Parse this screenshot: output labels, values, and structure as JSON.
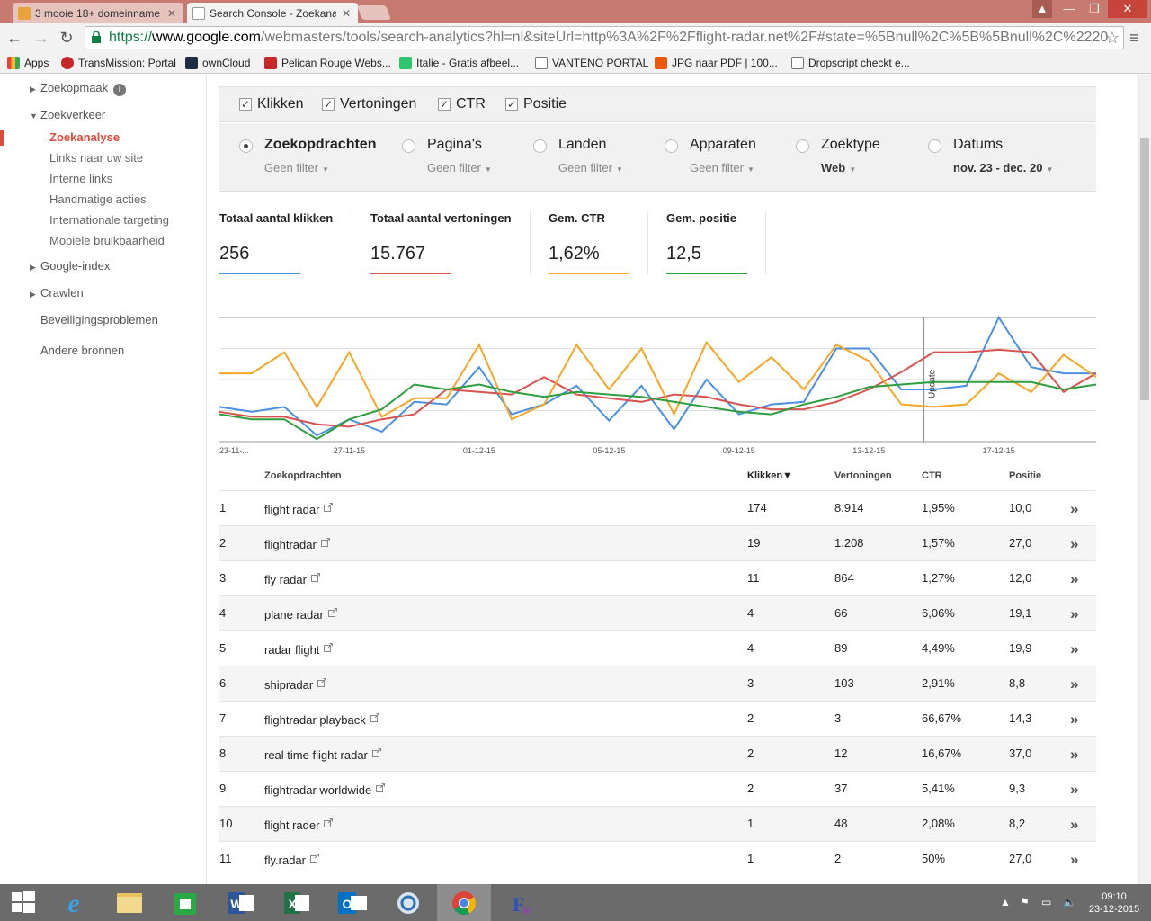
{
  "browser": {
    "tabs": [
      {
        "title": "3 mooie 18+ domeinname",
        "active": false
      },
      {
        "title": "Search Console - Zoekana",
        "active": true
      }
    ],
    "url": {
      "scheme": "https://",
      "host": "www.google.com",
      "path": "/webmasters/tools/search-analytics?hl=nl&siteUrl=http%3A%2F%2Fflight-radar.net%2F#state=%5Bnull%2C%5B%5Bnull%2C%2220"
    },
    "bookmarks": [
      "Apps",
      "TransMission: Portal",
      "ownCloud",
      "Pelican Rouge Webs...",
      "Italie - Gratis afbeel...",
      "VANTENO PORTAL",
      "JPG naar PDF | 100...",
      "Dropscript checkt e..."
    ]
  },
  "sidebar": {
    "items": [
      {
        "label": "Zoekopmaak"
      },
      {
        "label": "Zoekverkeer"
      },
      {
        "label": "Zoekanalyse"
      },
      {
        "label": "Links naar uw site"
      },
      {
        "label": "Interne links"
      },
      {
        "label": "Handmatige acties"
      },
      {
        "label": "Internationale targeting"
      },
      {
        "label": "Mobiele bruikbaarheid"
      },
      {
        "label": "Google-index"
      },
      {
        "label": "Crawlen"
      },
      {
        "label": "Beveiligingsproblemen"
      },
      {
        "label": "Andere bronnen"
      }
    ]
  },
  "filters": {
    "metrics_toggles": [
      "Klikken",
      "Vertoningen",
      "CTR",
      "Positie"
    ],
    "dimensions": [
      {
        "label": "Zoekopdrachten",
        "sub": "Geen filter",
        "selected": true
      },
      {
        "label": "Pagina's",
        "sub": "Geen filter",
        "selected": false
      },
      {
        "label": "Landen",
        "sub": "Geen filter",
        "selected": false
      },
      {
        "label": "Apparaten",
        "sub": "Geen filter",
        "selected": false
      },
      {
        "label": "Zoektype",
        "sub": "Web",
        "selected": false
      },
      {
        "label": "Datums",
        "sub": "nov. 23 - dec. 20",
        "selected": false
      }
    ]
  },
  "metrics": [
    {
      "label": "Totaal aantal klikken",
      "value": "256",
      "color": "#4a90e2"
    },
    {
      "label": "Totaal aantal vertoningen",
      "value": "15.767",
      "color": "#d9534f"
    },
    {
      "label": "Gem. CTR",
      "value": "1,62%",
      "color": "#f5a623"
    },
    {
      "label": "Gem. positie",
      "value": "12,5",
      "color": "#2e9e3e"
    }
  ],
  "chart_data": {
    "type": "line",
    "x_tick_labels": [
      "23-11-...",
      "27-11-15",
      "01-12-15",
      "05-12-15",
      "09-12-15",
      "13-12-15",
      "17-12-15"
    ],
    "annotation": "Update",
    "series": [
      {
        "color": "#4a90e2",
        "values": [
          0.28,
          0.24,
          0.28,
          0.05,
          0.18,
          0.08,
          0.32,
          0.3,
          0.6,
          0.22,
          0.3,
          0.45,
          0.17,
          0.45,
          0.1,
          0.5,
          0.22,
          0.3,
          0.32,
          0.75,
          0.75,
          0.42,
          0.42,
          0.45,
          1.0,
          0.6,
          0.55,
          0.55
        ]
      },
      {
        "color": "#d9534f",
        "values": [
          0.24,
          0.2,
          0.2,
          0.14,
          0.12,
          0.18,
          0.22,
          0.42,
          0.4,
          0.38,
          0.52,
          0.38,
          0.35,
          0.32,
          0.38,
          0.36,
          0.3,
          0.26,
          0.26,
          0.32,
          0.42,
          0.56,
          0.72,
          0.72,
          0.74,
          0.72,
          0.4,
          0.55
        ]
      },
      {
        "color": "#f5a623",
        "values": [
          0.55,
          0.55,
          0.72,
          0.28,
          0.72,
          0.2,
          0.35,
          0.35,
          0.78,
          0.18,
          0.3,
          0.78,
          0.42,
          0.75,
          0.22,
          0.8,
          0.48,
          0.68,
          0.42,
          0.78,
          0.65,
          0.3,
          0.28,
          0.3,
          0.55,
          0.4,
          0.7,
          0.52
        ]
      },
      {
        "color": "#2e9e3e",
        "values": [
          0.22,
          0.18,
          0.18,
          0.02,
          0.18,
          0.26,
          0.46,
          0.42,
          0.46,
          0.4,
          0.36,
          0.4,
          0.38,
          0.36,
          0.32,
          0.28,
          0.24,
          0.22,
          0.3,
          0.36,
          0.44,
          0.46,
          0.48,
          0.48,
          0.48,
          0.48,
          0.42,
          0.46
        ]
      }
    ]
  },
  "table": {
    "headers": {
      "query": "Zoekopdrachten",
      "clicks": "Klikken",
      "sort": "▼",
      "impressions": "Vertoningen",
      "ctr": "CTR",
      "position": "Positie"
    },
    "rows": [
      {
        "n": "1",
        "query": "flight radar",
        "clicks": "174",
        "impressions": "8.914",
        "ctr": "1,95%",
        "position": "10,0"
      },
      {
        "n": "2",
        "query": "flightradar",
        "clicks": "19",
        "impressions": "1.208",
        "ctr": "1,57%",
        "position": "27,0"
      },
      {
        "n": "3",
        "query": "fly radar",
        "clicks": "11",
        "impressions": "864",
        "ctr": "1,27%",
        "position": "12,0"
      },
      {
        "n": "4",
        "query": "plane radar",
        "clicks": "4",
        "impressions": "66",
        "ctr": "6,06%",
        "position": "19,1"
      },
      {
        "n": "5",
        "query": "radar flight",
        "clicks": "4",
        "impressions": "89",
        "ctr": "4,49%",
        "position": "19,9"
      },
      {
        "n": "6",
        "query": "shipradar",
        "clicks": "3",
        "impressions": "103",
        "ctr": "2,91%",
        "position": "8,8"
      },
      {
        "n": "7",
        "query": "flightradar playback",
        "clicks": "2",
        "impressions": "3",
        "ctr": "66,67%",
        "position": "14,3"
      },
      {
        "n": "8",
        "query": "real time flight radar",
        "clicks": "2",
        "impressions": "12",
        "ctr": "16,67%",
        "position": "37,0"
      },
      {
        "n": "9",
        "query": "flightradar worldwide",
        "clicks": "2",
        "impressions": "37",
        "ctr": "5,41%",
        "position": "9,3"
      },
      {
        "n": "10",
        "query": "flight rader",
        "clicks": "1",
        "impressions": "48",
        "ctr": "2,08%",
        "position": "8,2"
      },
      {
        "n": "11",
        "query": "fly.radar",
        "clicks": "1",
        "impressions": "2",
        "ctr": "50%",
        "position": "27,0"
      }
    ]
  },
  "taskbar": {
    "time": "09:10",
    "date": "23-12-2015"
  }
}
